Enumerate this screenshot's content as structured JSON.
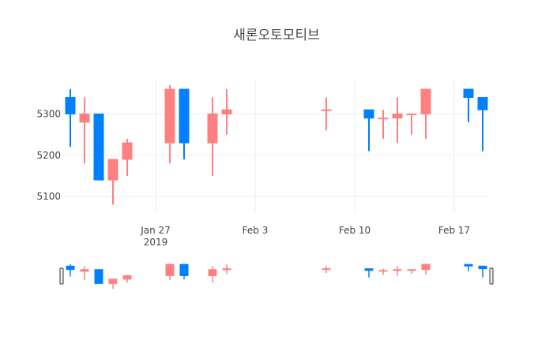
{
  "chart_data": {
    "type": "candlestick",
    "title": "새론오토모티브",
    "x_unit": "date",
    "x_ticks": [
      {
        "date": "2019-01-27",
        "label": "Jan 27",
        "sublabel": "2019"
      },
      {
        "date": "2019-02-03",
        "label": "Feb 3",
        "sublabel": ""
      },
      {
        "date": "2019-02-10",
        "label": "Feb 10",
        "sublabel": ""
      },
      {
        "date": "2019-02-17",
        "label": "Feb 17",
        "sublabel": ""
      }
    ],
    "y_ticks": [
      5100,
      5200,
      5300
    ],
    "xlim": [
      "2019-01-21",
      "2019-02-19"
    ],
    "ylim": [
      5060,
      5385
    ],
    "grid": true,
    "rangeslider": true,
    "colors": {
      "increasing": "#ff8080",
      "decreasing": "#0080ff",
      "grid": "#eeeeee",
      "title": "#444444",
      "tick": "#444444"
    },
    "candles": [
      {
        "date": "2019-01-21",
        "open": 5340,
        "high": 5360,
        "low": 5220,
        "close": 5300
      },
      {
        "date": "2019-01-22",
        "open": 5280,
        "high": 5340,
        "low": 5180,
        "close": 5300
      },
      {
        "date": "2019-01-23",
        "open": 5300,
        "high": 5300,
        "low": 5140,
        "close": 5140
      },
      {
        "date": "2019-01-24",
        "open": 5140,
        "high": 5190,
        "low": 5080,
        "close": 5190
      },
      {
        "date": "2019-01-25",
        "open": 5190,
        "high": 5240,
        "low": 5150,
        "close": 5230
      },
      {
        "date": "2019-01-28",
        "open": 5230,
        "high": 5370,
        "low": 5180,
        "close": 5360
      },
      {
        "date": "2019-01-29",
        "open": 5360,
        "high": 5360,
        "low": 5190,
        "close": 5230
      },
      {
        "date": "2019-01-31",
        "open": 5230,
        "high": 5340,
        "low": 5150,
        "close": 5300
      },
      {
        "date": "2019-02-01",
        "open": 5300,
        "high": 5360,
        "low": 5250,
        "close": 5310
      },
      {
        "date": "2019-02-08",
        "open": 5310,
        "high": 5340,
        "low": 5260,
        "close": 5310
      },
      {
        "date": "2019-02-11",
        "open": 5310,
        "high": 5310,
        "low": 5210,
        "close": 5290
      },
      {
        "date": "2019-02-12",
        "open": 5290,
        "high": 5310,
        "low": 5240,
        "close": 5290
      },
      {
        "date": "2019-02-13",
        "open": 5290,
        "high": 5340,
        "low": 5230,
        "close": 5300
      },
      {
        "date": "2019-02-14",
        "open": 5300,
        "high": 5300,
        "low": 5250,
        "close": 5300
      },
      {
        "date": "2019-02-15",
        "open": 5300,
        "high": 5360,
        "low": 5240,
        "close": 5360
      },
      {
        "date": "2019-02-18",
        "open": 5360,
        "high": 5360,
        "low": 5280,
        "close": 5340
      },
      {
        "date": "2019-02-19",
        "open": 5340,
        "high": 5340,
        "low": 5210,
        "close": 5310
      }
    ]
  }
}
